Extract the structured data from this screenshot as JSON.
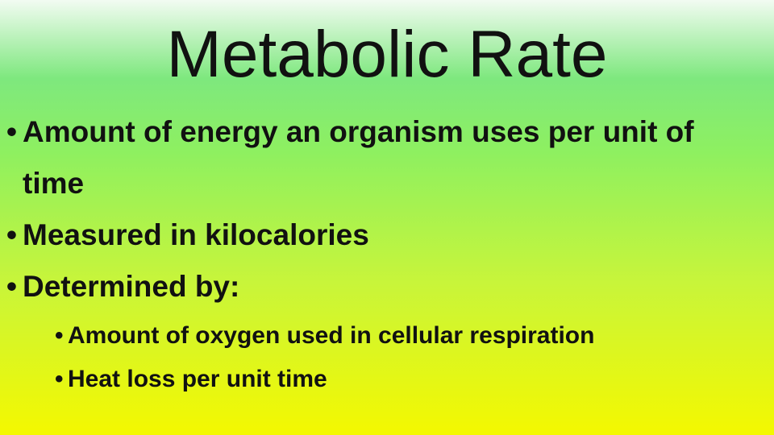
{
  "title": "Metabolic Rate",
  "bullets": [
    {
      "text": "Amount of energy an organism uses per unit of time"
    },
    {
      "text": "Measured in kilocalories"
    },
    {
      "text": "Determined by:",
      "children": [
        "Amount of oxygen used in cellular respiration",
        "Heat loss per unit time"
      ]
    }
  ]
}
